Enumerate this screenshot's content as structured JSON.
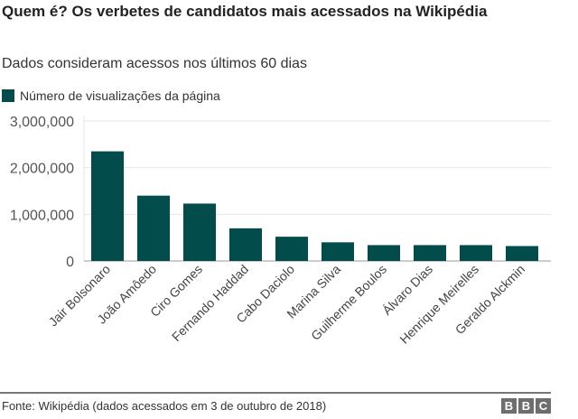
{
  "chart_data": {
    "type": "bar",
    "title": "Quem é? Os verbetes de candidatos mais acessados na Wikipédia",
    "subtitle": "Dados consideram acessos nos últimos 60 dias",
    "legend": [
      {
        "name": "Número de visualizações da página",
        "color": "#034c4c"
      }
    ],
    "legend_placement": "top-left",
    "categories": [
      "Jair Bolsonaro",
      "João Amôedo",
      "Ciro Gomes",
      "Fernando Haddad",
      "Cabo Daciolo",
      "Marina Silva",
      "Guilherme Boulos",
      "Álvaro Dias",
      "Henrique Meirelles",
      "Geraldo Alckmin"
    ],
    "series": [
      {
        "name": "Número de visualizações da página",
        "values": [
          2350000,
          1400000,
          1230000,
          700000,
          520000,
          400000,
          340000,
          340000,
          340000,
          320000
        ]
      }
    ],
    "ylim": [
      0,
      3000000
    ],
    "yticks": [
      0,
      1000000,
      2000000,
      3000000
    ],
    "ytick_labels": [
      "0",
      "1,000,000",
      "2,000,000",
      "3,000,000"
    ],
    "grid": true,
    "bar_color": "#034c4c",
    "xlabel": "",
    "ylabel": ""
  },
  "footer": {
    "source": "Fonte: Wikipédia (dados acessados em 3 de outubro de 2018)",
    "logo": "BBC"
  }
}
